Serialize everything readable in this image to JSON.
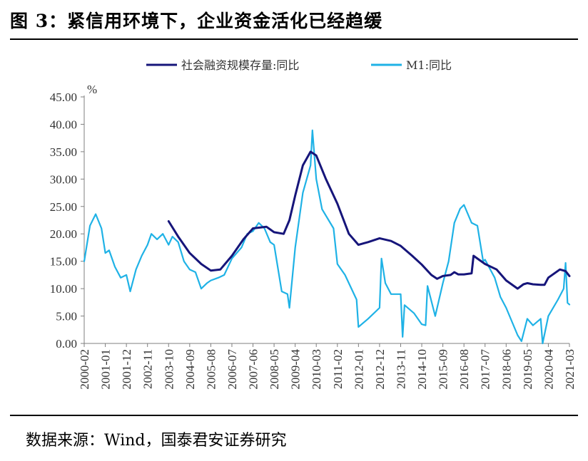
{
  "figure": {
    "title": "图 3：紧信用环境下，企业资金活化已经趋缓",
    "source": "数据来源：Wind，国泰君安证券研究"
  },
  "chart_data": {
    "type": "line",
    "title": "",
    "ylabel": "%",
    "xlabel": "",
    "ylim": [
      0,
      45
    ],
    "y_ticks": [
      "45.00",
      "40.00",
      "35.00",
      "30.00",
      "25.00",
      "20.00",
      "15.00",
      "10.00",
      "5.00",
      "0.00"
    ],
    "x_ticks": [
      "2000-02",
      "2001-01",
      "2001-12",
      "2002-11",
      "2003-10",
      "2004-09",
      "2005-08",
      "2006-07",
      "2007-06",
      "2008-05",
      "2009-04",
      "2010-03",
      "2011-02",
      "2012-01",
      "2012-12",
      "2013-11",
      "2014-10",
      "2015-09",
      "2016-08",
      "2017-07",
      "2018-06",
      "2019-05",
      "2020-04",
      "2021-03"
    ],
    "x_range": [
      "2000-02",
      "2021-03"
    ],
    "legend_position": "top",
    "grid": false,
    "series": [
      {
        "name": "社会融资规模存量:同比",
        "color": "#16157a",
        "points": [
          [
            "2003-10",
            22.3
          ],
          [
            "2004-03",
            19.5
          ],
          [
            "2004-09",
            16.5
          ],
          [
            "2005-03",
            14.5
          ],
          [
            "2005-08",
            13.3
          ],
          [
            "2006-01",
            13.5
          ],
          [
            "2006-07",
            16.0
          ],
          [
            "2007-01",
            19.0
          ],
          [
            "2007-06",
            21.0
          ],
          [
            "2008-01",
            21.3
          ],
          [
            "2008-05",
            20.3
          ],
          [
            "2008-10",
            20.0
          ],
          [
            "2009-01",
            22.5
          ],
          [
            "2009-04",
            27.0
          ],
          [
            "2009-08",
            32.5
          ],
          [
            "2009-12",
            35.0
          ],
          [
            "2010-03",
            34.3
          ],
          [
            "2010-08",
            30.0
          ],
          [
            "2011-02",
            25.5
          ],
          [
            "2011-08",
            20.0
          ],
          [
            "2012-01",
            18.0
          ],
          [
            "2012-06",
            18.5
          ],
          [
            "2012-12",
            19.2
          ],
          [
            "2013-06",
            18.7
          ],
          [
            "2013-11",
            17.8
          ],
          [
            "2014-05",
            16.0
          ],
          [
            "2014-10",
            14.4
          ],
          [
            "2015-03",
            12.5
          ],
          [
            "2015-06",
            11.8
          ],
          [
            "2015-09",
            12.3
          ],
          [
            "2016-01",
            12.5
          ],
          [
            "2016-03",
            13.0
          ],
          [
            "2016-05",
            12.6
          ],
          [
            "2016-08",
            12.6
          ],
          [
            "2016-12",
            12.8
          ],
          [
            "2017-01",
            16.0
          ],
          [
            "2017-07",
            14.5
          ],
          [
            "2018-01",
            13.5
          ],
          [
            "2018-06",
            11.5
          ],
          [
            "2018-12",
            10.0
          ],
          [
            "2019-03",
            10.8
          ],
          [
            "2019-05",
            11.0
          ],
          [
            "2019-08",
            10.8
          ],
          [
            "2019-12",
            10.7
          ],
          [
            "2020-02",
            10.7
          ],
          [
            "2020-04",
            12.0
          ],
          [
            "2020-10",
            13.5
          ],
          [
            "2021-01",
            13.2
          ],
          [
            "2021-03",
            12.3
          ]
        ]
      },
      {
        "name": "M1:同比",
        "color": "#1fb2e6",
        "points": [
          [
            "2000-02",
            15.0
          ],
          [
            "2000-05",
            21.5
          ],
          [
            "2000-08",
            23.6
          ],
          [
            "2000-11",
            21.0
          ],
          [
            "2001-01",
            16.5
          ],
          [
            "2001-03",
            17.0
          ],
          [
            "2001-06",
            14.0
          ],
          [
            "2001-09",
            12.0
          ],
          [
            "2001-12",
            12.5
          ],
          [
            "2002-02",
            9.5
          ],
          [
            "2002-05",
            13.5
          ],
          [
            "2002-08",
            16.0
          ],
          [
            "2002-11",
            18.0
          ],
          [
            "2003-01",
            20.0
          ],
          [
            "2003-04",
            19.0
          ],
          [
            "2003-07",
            20.0
          ],
          [
            "2003-10",
            18.0
          ],
          [
            "2003-12",
            19.5
          ],
          [
            "2004-03",
            18.5
          ],
          [
            "2004-06",
            15.0
          ],
          [
            "2004-09",
            13.5
          ],
          [
            "2004-12",
            13.0
          ],
          [
            "2005-03",
            10.0
          ],
          [
            "2005-06",
            11.0
          ],
          [
            "2005-08",
            11.5
          ],
          [
            "2005-12",
            12.0
          ],
          [
            "2006-03",
            12.5
          ],
          [
            "2006-07",
            15.5
          ],
          [
            "2006-12",
            17.5
          ],
          [
            "2007-03",
            20.0
          ],
          [
            "2007-06",
            20.5
          ],
          [
            "2007-09",
            22.0
          ],
          [
            "2007-12",
            21.0
          ],
          [
            "2008-03",
            18.5
          ],
          [
            "2008-05",
            18.0
          ],
          [
            "2008-09",
            9.5
          ],
          [
            "2008-12",
            9.0
          ],
          [
            "2009-01",
            6.5
          ],
          [
            "2009-04",
            17.5
          ],
          [
            "2009-08",
            27.5
          ],
          [
            "2009-12",
            32.5
          ],
          [
            "2010-01",
            38.9
          ],
          [
            "2010-03",
            30.0
          ],
          [
            "2010-06",
            24.5
          ],
          [
            "2010-12",
            21.0
          ],
          [
            "2011-02",
            14.5
          ],
          [
            "2011-06",
            12.5
          ],
          [
            "2011-12",
            8.0
          ],
          [
            "2012-01",
            3.0
          ],
          [
            "2012-06",
            4.5
          ],
          [
            "2012-12",
            6.5
          ],
          [
            "2013-01",
            15.5
          ],
          [
            "2013-03",
            11.0
          ],
          [
            "2013-06",
            9.0
          ],
          [
            "2013-11",
            9.0
          ],
          [
            "2013-12",
            1.2
          ],
          [
            "2014-01",
            7.0
          ],
          [
            "2014-06",
            5.5
          ],
          [
            "2014-10",
            3.5
          ],
          [
            "2014-12",
            3.3
          ],
          [
            "2015-01",
            10.5
          ],
          [
            "2015-05",
            5.0
          ],
          [
            "2015-09",
            11.0
          ],
          [
            "2015-12",
            15.0
          ],
          [
            "2016-03",
            22.0
          ],
          [
            "2016-06",
            24.6
          ],
          [
            "2016-08",
            25.3
          ],
          [
            "2016-12",
            22.0
          ],
          [
            "2017-03",
            21.5
          ],
          [
            "2017-06",
            15.0
          ],
          [
            "2017-07",
            15.3
          ],
          [
            "2017-12",
            12.0
          ],
          [
            "2018-03",
            8.5
          ],
          [
            "2018-06",
            6.5
          ],
          [
            "2018-12",
            1.5
          ],
          [
            "2019-02",
            0.4
          ],
          [
            "2019-05",
            4.5
          ],
          [
            "2019-08",
            3.3
          ],
          [
            "2019-12",
            4.5
          ],
          [
            "2020-01",
            0.0
          ],
          [
            "2020-04",
            5.0
          ],
          [
            "2020-09",
            8.0
          ],
          [
            "2020-12",
            10.0
          ],
          [
            "2021-01",
            14.7
          ],
          [
            "2021-02",
            7.4
          ],
          [
            "2021-03",
            7.1
          ]
        ]
      }
    ]
  }
}
